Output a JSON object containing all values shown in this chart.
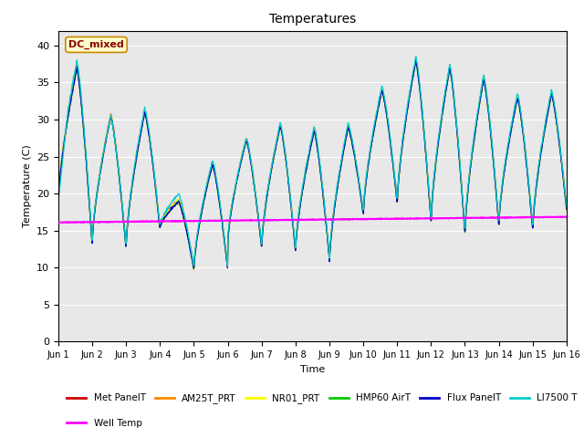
{
  "title": "Temperatures",
  "xlabel": "Time",
  "ylabel": "Temperature (C)",
  "annotation": "DC_mixed",
  "ylim": [
    0,
    42
  ],
  "yticks": [
    0,
    5,
    10,
    15,
    20,
    25,
    30,
    35,
    40
  ],
  "background_color": "#e8e8e8",
  "series_colors": {
    "Met PanelT": "#cc0000",
    "AM25T_PRT": "#ff8800",
    "NR01_PRT": "#ffff00",
    "HMP60 AirT": "#00cc00",
    "Flux PanelT": "#0000cc",
    "LI7500 T": "#00cccc",
    "Well Temp": "#ff00ff"
  },
  "xtick_labels": [
    "Jun 1",
    "Jun 2",
    "Jun 3",
    "Jun 4",
    "Jun 5",
    "Jun 6",
    "Jun 7",
    "Jun 8",
    "Jun 9",
    "Jun 10",
    "Jun 11",
    "Jun 12",
    "Jun 13",
    "Jun 14",
    "Jun 15",
    "Jun 16"
  ],
  "well_temp": [
    16.1,
    16.15,
    16.2,
    16.25,
    16.3,
    16.35,
    16.4,
    16.45,
    16.5,
    16.55,
    16.6,
    16.65,
    16.7,
    16.75,
    16.8,
    16.85
  ],
  "day_peaks": [
    37.0,
    30.5,
    31.0,
    19.0,
    24.0,
    27.3,
    29.2,
    28.5,
    29.0,
    34.0,
    38.0,
    37.0,
    35.5,
    33.0,
    33.5
  ],
  "day_troughs_am": [
    19.0,
    13.5,
    13.0,
    15.5,
    10.0,
    13.5,
    13.0,
    12.5,
    11.0,
    17.5,
    19.0,
    16.5,
    15.0,
    16.0,
    15.5
  ],
  "day_troughs_pm": [
    13.5,
    13.0,
    15.5,
    10.0,
    10.0,
    13.0,
    12.5,
    11.5,
    17.5,
    19.0,
    16.5,
    15.0,
    16.0,
    15.5,
    18.0
  ],
  "li7500_extra_peaks": [
    38.0,
    30.5,
    31.5,
    20.0,
    24.5,
    27.5,
    29.5,
    29.0,
    29.5,
    34.5,
    38.5,
    37.5,
    36.0,
    33.5,
    34.0
  ],
  "peak_phase": 0.55,
  "figsize": [
    6.4,
    4.8
  ],
  "dpi": 100
}
